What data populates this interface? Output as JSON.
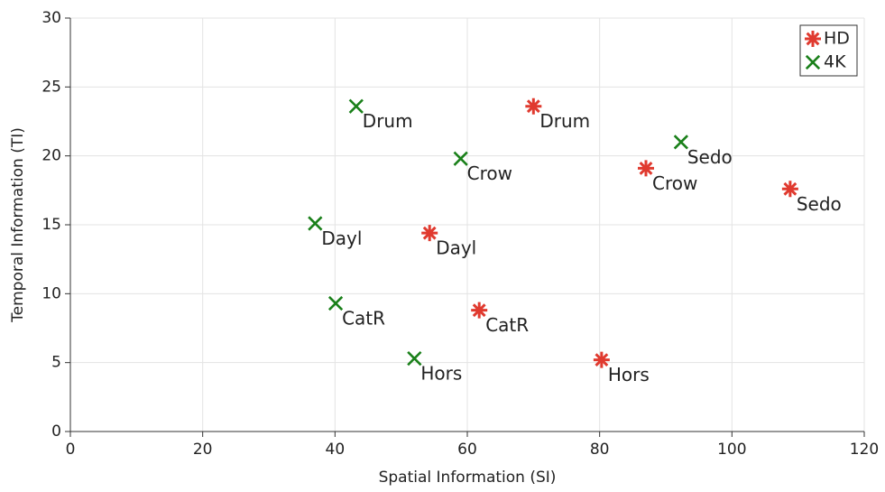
{
  "chart_data": {
    "type": "scatter",
    "xlabel": "Spatial Information (SI)",
    "ylabel": "Temporal Information (TI)",
    "xlim": [
      0,
      120
    ],
    "xticks": [
      0,
      20,
      40,
      60,
      80,
      100,
      120
    ],
    "ylim": [
      0,
      30
    ],
    "yticks": [
      0,
      5,
      10,
      15,
      20,
      25,
      30
    ],
    "grid": true,
    "legend": "upper right",
    "series": [
      {
        "name": "HD",
        "color": "#e03a2f",
        "marker": "star",
        "labels": [
          "Drum",
          "Crow",
          "Sedo",
          "Dayl",
          "CatR",
          "Hors"
        ],
        "x": [
          70.0,
          87.0,
          108.8,
          54.3,
          61.8,
          80.3
        ],
        "values": [
          23.6,
          19.1,
          17.6,
          14.4,
          8.8,
          5.2
        ]
      },
      {
        "name": "4K",
        "color": "#1a801a",
        "marker": "x",
        "labels": [
          "Drum",
          "Crow",
          "Sedo",
          "Dayl",
          "CatR",
          "Hors"
        ],
        "x": [
          43.2,
          59.0,
          92.3,
          37.0,
          40.1,
          52.0
        ],
        "values": [
          23.6,
          19.8,
          21.0,
          15.1,
          9.3,
          5.3
        ]
      }
    ]
  }
}
